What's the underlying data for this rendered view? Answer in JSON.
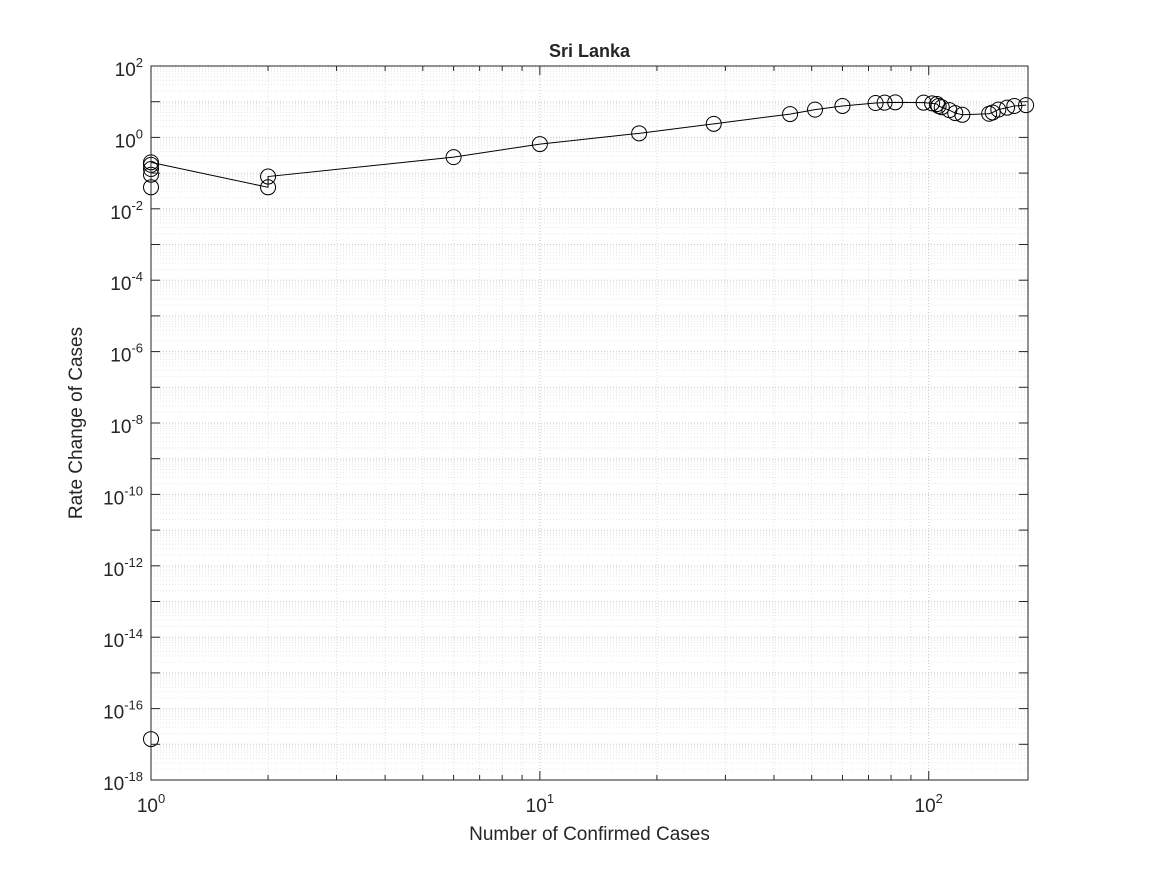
{
  "chart_data": {
    "type": "scatter",
    "title": "Sri Lanka",
    "xlabel": "Number of Confirmed Cases",
    "ylabel": "Rate Change of Cases",
    "xscale": "log",
    "yscale": "log",
    "xlim": [
      1,
      180
    ],
    "ylim": [
      1e-18,
      100
    ],
    "grid": true,
    "minor_grid": true,
    "x_ticks": [
      {
        "value": 1,
        "base": "10",
        "exp": "0"
      },
      {
        "value": 10,
        "base": "10",
        "exp": "1"
      },
      {
        "value": 100,
        "base": "10",
        "exp": "2"
      }
    ],
    "y_ticks": [
      {
        "value": 1e-18,
        "base": "10",
        "exp": "-18"
      },
      {
        "value": 1e-16,
        "base": "10",
        "exp": "-16"
      },
      {
        "value": 1e-14,
        "base": "10",
        "exp": "-14"
      },
      {
        "value": 1e-12,
        "base": "10",
        "exp": "-12"
      },
      {
        "value": 1e-10,
        "base": "10",
        "exp": "-10"
      },
      {
        "value": 1e-08,
        "base": "10",
        "exp": "-8"
      },
      {
        "value": 1e-06,
        "base": "10",
        "exp": "-6"
      },
      {
        "value": 0.0001,
        "base": "10",
        "exp": "-4"
      },
      {
        "value": 0.01,
        "base": "10",
        "exp": "-2"
      },
      {
        "value": 1,
        "base": "10",
        "exp": "0"
      },
      {
        "value": 100,
        "base": "10",
        "exp": "2"
      }
    ],
    "series": [
      {
        "line_color": "#000000",
        "marker": "circle",
        "x": [
          1,
          1,
          1,
          1,
          1,
          1,
          2,
          2,
          6,
          10,
          18,
          28,
          44,
          51,
          60,
          73,
          77,
          82,
          97,
          102,
          105,
          106,
          108,
          113,
          117,
          122,
          143,
          146,
          151,
          159,
          166,
          178
        ],
        "y": [
          1.4e-17,
          0.04,
          0.09,
          0.13,
          0.17,
          0.2,
          0.04,
          0.08,
          0.28,
          0.65,
          1.3,
          2.4,
          4.5,
          6.0,
          7.6,
          9.2,
          9.4,
          9.6,
          9.4,
          9.0,
          8.6,
          7.6,
          7.0,
          5.8,
          4.8,
          4.3,
          4.6,
          5.0,
          6.0,
          6.8,
          7.6,
          8.0
        ]
      }
    ]
  }
}
